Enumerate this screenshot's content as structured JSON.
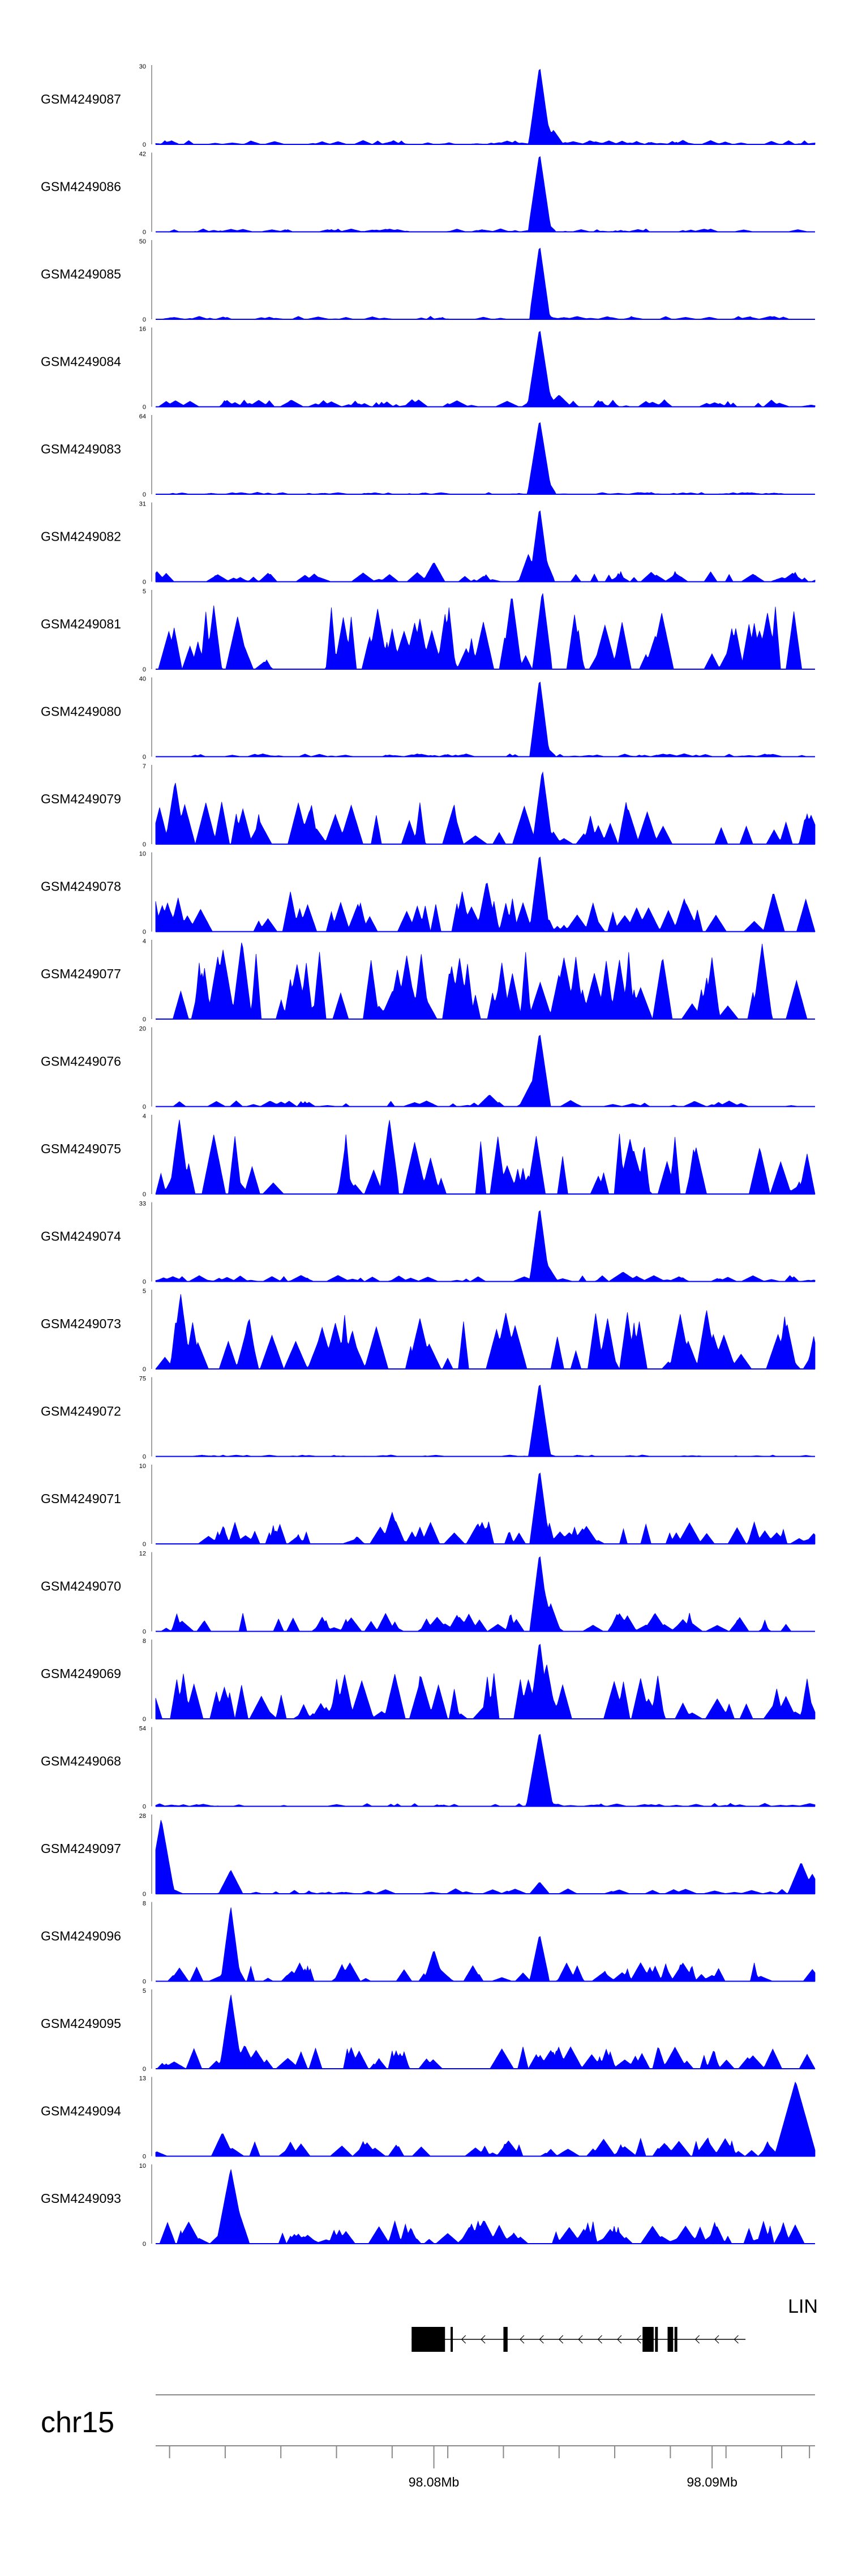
{
  "colors": {
    "signal": "#0000ff",
    "axis": "#888888",
    "gene": "#000000"
  },
  "chart_data": {
    "type": "area",
    "genome_track": true,
    "chromosome": "chr15",
    "x_range_bp": [
      98070000,
      98093700
    ],
    "series": [
      {
        "name": "GSM4249087",
        "ymax": "30",
        "max": 30,
        "seed": 1,
        "baseline": 0.04,
        "n": 70,
        "style": "dense",
        "peaks": [
          {
            "x": 98083800,
            "h": 1.0,
            "w": 70
          },
          {
            "x": 98084000,
            "h": 0.35,
            "w": 60
          },
          {
            "x": 98084300,
            "h": 0.18,
            "w": 60
          }
        ]
      },
      {
        "name": "GSM4249086",
        "ymax": "42",
        "max": 42,
        "seed": 2,
        "baseline": 0.03,
        "n": 60,
        "style": "dense",
        "peaks": [
          {
            "x": 98083800,
            "h": 1.0,
            "w": 75
          },
          {
            "x": 98084050,
            "h": 0.12,
            "w": 60
          }
        ]
      },
      {
        "name": "GSM4249085",
        "ymax": "50",
        "max": 50,
        "seed": 3,
        "baseline": 0.03,
        "n": 60,
        "style": "dense",
        "peaks": [
          {
            "x": 98083800,
            "h": 0.95,
            "w": 65
          },
          {
            "x": 98084050,
            "h": 0.06,
            "w": 60
          }
        ]
      },
      {
        "name": "GSM4249084",
        "ymax": "16",
        "max": 16,
        "seed": 4,
        "baseline": 0.07,
        "n": 65,
        "style": "dense",
        "peaks": [
          {
            "x": 98083800,
            "h": 1.0,
            "w": 80
          },
          {
            "x": 98084050,
            "h": 0.22,
            "w": 70
          },
          {
            "x": 98084500,
            "h": 0.15,
            "w": 80
          }
        ]
      },
      {
        "name": "GSM4249083",
        "ymax": "64",
        "max": 64,
        "seed": 5,
        "baseline": 0.02,
        "n": 60,
        "style": "dense",
        "peaks": [
          {
            "x": 98083800,
            "h": 0.95,
            "w": 80
          },
          {
            "x": 98084050,
            "h": 0.2,
            "w": 60
          }
        ]
      },
      {
        "name": "GSM4249082",
        "ymax": "31",
        "max": 31,
        "seed": 6,
        "baseline": 0.1,
        "n": 60,
        "style": "dense",
        "peaks": [
          {
            "x": 98083800,
            "h": 0.95,
            "w": 60
          },
          {
            "x": 98083400,
            "h": 0.35,
            "w": 60
          },
          {
            "x": 98084000,
            "h": 0.3,
            "w": 60
          },
          {
            "x": 98080000,
            "h": 0.25,
            "w": 70
          }
        ]
      },
      {
        "name": "GSM4249081",
        "ymax": "5",
        "max": 5,
        "seed": 7,
        "baseline": 0.45,
        "n": 60,
        "style": "spiky",
        "peaks": [
          {
            "x": 98083900,
            "h": 1.0,
            "w": 60
          },
          {
            "x": 98082800,
            "h": 0.95,
            "w": 60
          }
        ]
      },
      {
        "name": "GSM4249080",
        "ymax": "40",
        "max": 40,
        "seed": 8,
        "baseline": 0.03,
        "n": 60,
        "style": "dense",
        "peaks": [
          {
            "x": 98083800,
            "h": 1.0,
            "w": 60
          },
          {
            "x": 98084050,
            "h": 0.12,
            "w": 60
          }
        ]
      },
      {
        "name": "GSM4249079",
        "ymax": "7",
        "max": 7,
        "seed": 9,
        "baseline": 0.3,
        "n": 55,
        "style": "spiky",
        "peaks": [
          {
            "x": 98083900,
            "h": 0.95,
            "w": 60
          },
          {
            "x": 98070700,
            "h": 0.8,
            "w": 60
          }
        ]
      },
      {
        "name": "GSM4249078",
        "ymax": "10",
        "max": 10,
        "seed": 10,
        "baseline": 0.28,
        "n": 55,
        "style": "spiky",
        "peaks": [
          {
            "x": 98083800,
            "h": 1.0,
            "w": 60
          },
          {
            "x": 98081900,
            "h": 0.65,
            "w": 60
          },
          {
            "x": 98092200,
            "h": 0.5,
            "w": 60
          }
        ]
      },
      {
        "name": "GSM4249077",
        "ymax": "4",
        "max": 4,
        "seed": 11,
        "baseline": 0.5,
        "n": 60,
        "style": "spiky",
        "peaks": [
          {
            "x": 98073100,
            "h": 1.0,
            "w": 60
          },
          {
            "x": 98091800,
            "h": 0.95,
            "w": 60
          }
        ]
      },
      {
        "name": "GSM4249076",
        "ymax": "20",
        "max": 20,
        "seed": 12,
        "baseline": 0.06,
        "n": 40,
        "style": "dense",
        "peaks": [
          {
            "x": 98083800,
            "h": 0.95,
            "w": 70
          },
          {
            "x": 98083500,
            "h": 0.3,
            "w": 80
          },
          {
            "x": 98082000,
            "h": 0.15,
            "w": 80
          }
        ]
      },
      {
        "name": "GSM4249075",
        "ymax": "4",
        "max": 4,
        "seed": 13,
        "baseline": 0.45,
        "n": 50,
        "style": "spiky",
        "peaks": [
          {
            "x": 98070850,
            "h": 0.95,
            "w": 60
          },
          {
            "x": 98078400,
            "h": 0.95,
            "w": 60
          }
        ]
      },
      {
        "name": "GSM4249074",
        "ymax": "33",
        "max": 33,
        "seed": 14,
        "baseline": 0.06,
        "n": 60,
        "style": "dense",
        "peaks": [
          {
            "x": 98083800,
            "h": 0.95,
            "w": 60
          },
          {
            "x": 98084100,
            "h": 0.2,
            "w": 60
          },
          {
            "x": 98086800,
            "h": 0.12,
            "w": 100
          }
        ]
      },
      {
        "name": "GSM4249073",
        "ymax": "5",
        "max": 5,
        "seed": 15,
        "baseline": 0.4,
        "n": 60,
        "style": "spiky",
        "peaks": [
          {
            "x": 98070900,
            "h": 0.95,
            "w": 60
          },
          {
            "x": 98089800,
            "h": 0.75,
            "w": 60
          }
        ]
      },
      {
        "name": "GSM4249072",
        "ymax": "75",
        "max": 75,
        "seed": 16,
        "baseline": 0.015,
        "n": 40,
        "style": "dense",
        "peaks": [
          {
            "x": 98083800,
            "h": 0.95,
            "w": 70
          },
          {
            "x": 98084050,
            "h": 0.04,
            "w": 60
          }
        ]
      },
      {
        "name": "GSM4249071",
        "ymax": "10",
        "max": 10,
        "seed": 17,
        "baseline": 0.22,
        "n": 60,
        "style": "dense",
        "peaks": [
          {
            "x": 98083800,
            "h": 0.95,
            "w": 60
          },
          {
            "x": 98078500,
            "h": 0.4,
            "w": 60
          }
        ]
      },
      {
        "name": "GSM4249070",
        "ymax": "12",
        "max": 12,
        "seed": 18,
        "baseline": 0.18,
        "n": 60,
        "style": "dense",
        "peaks": [
          {
            "x": 98083800,
            "h": 1.0,
            "w": 60
          },
          {
            "x": 98083950,
            "h": 0.55,
            "w": 60
          },
          {
            "x": 98084200,
            "h": 0.35,
            "w": 60
          }
        ]
      },
      {
        "name": "GSM4249069",
        "ymax": "8",
        "max": 8,
        "seed": 19,
        "baseline": 0.32,
        "n": 60,
        "style": "spiky",
        "peaks": [
          {
            "x": 98083800,
            "h": 1.0,
            "w": 60
          },
          {
            "x": 98084050,
            "h": 0.7,
            "w": 60
          },
          {
            "x": 98083400,
            "h": 0.5,
            "w": 60
          }
        ]
      },
      {
        "name": "GSM4249068",
        "ymax": "54",
        "max": 54,
        "seed": 20,
        "baseline": 0.03,
        "n": 50,
        "style": "dense",
        "peaks": [
          {
            "x": 98083800,
            "h": 0.95,
            "w": 90
          },
          {
            "x": 98084000,
            "h": 0.06,
            "w": 60
          }
        ]
      },
      {
        "name": "GSM4249097",
        "ymax": "28",
        "max": 28,
        "seed": 21,
        "baseline": 0.05,
        "n": 40,
        "style": "dense",
        "peaks": [
          {
            "x": 98070200,
            "h": 0.95,
            "w": 90
          },
          {
            "x": 98072700,
            "h": 0.3,
            "w": 80
          },
          {
            "x": 98093200,
            "h": 0.4,
            "w": 90
          },
          {
            "x": 98093600,
            "h": 0.25,
            "w": 70
          },
          {
            "x": 98083800,
            "h": 0.15,
            "w": 60
          }
        ]
      },
      {
        "name": "GSM4249096",
        "ymax": "8",
        "max": 8,
        "seed": 22,
        "baseline": 0.18,
        "n": 60,
        "style": "dense",
        "peaks": [
          {
            "x": 98072700,
            "h": 0.95,
            "w": 60
          },
          {
            "x": 98083800,
            "h": 0.6,
            "w": 60
          },
          {
            "x": 98080000,
            "h": 0.4,
            "w": 60
          }
        ]
      },
      {
        "name": "GSM4249095",
        "ymax": "5",
        "max": 5,
        "seed": 23,
        "baseline": 0.22,
        "n": 60,
        "style": "dense",
        "peaks": [
          {
            "x": 98072700,
            "h": 0.95,
            "w": 70
          },
          {
            "x": 98073200,
            "h": 0.3,
            "w": 70
          }
        ]
      },
      {
        "name": "GSM4249094",
        "ymax": "13",
        "max": 13,
        "seed": 24,
        "baseline": 0.18,
        "n": 60,
        "style": "dense",
        "peaks": [
          {
            "x": 98093000,
            "h": 0.95,
            "w": 160
          },
          {
            "x": 98072400,
            "h": 0.3,
            "w": 70
          }
        ]
      },
      {
        "name": "GSM4249093",
        "ymax": "10",
        "max": 10,
        "seed": 25,
        "baseline": 0.22,
        "n": 70,
        "style": "dense",
        "peaks": [
          {
            "x": 98072700,
            "h": 0.95,
            "w": 100
          },
          {
            "x": 98072900,
            "h": 0.5,
            "w": 90
          },
          {
            "x": 98081800,
            "h": 0.3,
            "w": 80
          }
        ]
      }
    ],
    "gene": {
      "name": "LIN",
      "strand": "-",
      "start": 98079200,
      "end": 98091200,
      "exons": [
        {
          "start": 98079200,
          "end": 98080400
        },
        {
          "start": 98080600,
          "end": 98080680
        },
        {
          "start": 98082500,
          "end": 98082650
        },
        {
          "start": 98087500,
          "end": 98087900
        },
        {
          "start": 98087950,
          "end": 98088050
        },
        {
          "start": 98088400,
          "end": 98088600
        },
        {
          "start": 98088650,
          "end": 98088750
        }
      ]
    },
    "axis": {
      "ticks": [
        98070500,
        98072500,
        98074500,
        98076500,
        98078500,
        98080500,
        98082500,
        98084500,
        98086500,
        98088500,
        98090500,
        98092500,
        98093500
      ],
      "labeled_ticks": [
        {
          "value": 98080000,
          "label": "98.08Mb"
        },
        {
          "value": 98090000,
          "label": "98.09Mb"
        }
      ]
    }
  }
}
